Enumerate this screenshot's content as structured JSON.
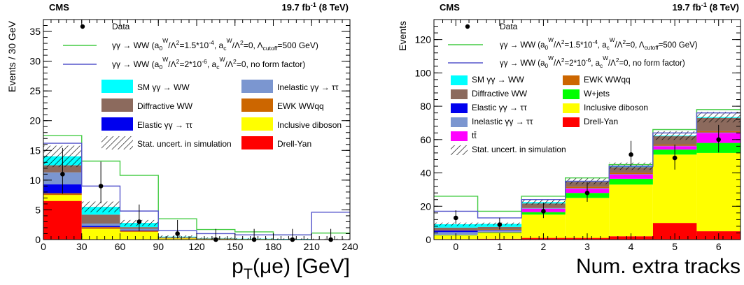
{
  "colors": {
    "sm_aa_ww": "#00ffff",
    "diffractive_ww": "#8c6a5d",
    "elastic_tautau": "#0000ee",
    "inelastic_tautau": "#7b96d0",
    "ewk_wwqq": "#cc6600",
    "inclusive_diboson": "#ffff00",
    "drell_yan": "#ff0000",
    "wjets": "#00ff00",
    "ttbar": "#ff00ff",
    "signal_formfactor": "#44cc44",
    "signal_noformfactor": "#5555cc",
    "data": "#000000"
  },
  "chart_data": [
    {
      "type": "bar",
      "panel": "left",
      "header_left": "CMS",
      "header_right": "19.7 fb-1 (8 TeV)",
      "xlabel": "pT(μe) [GeV]",
      "ylabel": "Events / 30 GeV",
      "xlim": [
        0,
        240
      ],
      "ylim": [
        0,
        37
      ],
      "xticks": [
        0,
        30,
        60,
        90,
        120,
        150,
        180,
        210,
        240
      ],
      "yticks": [
        0,
        5,
        10,
        15,
        20,
        25,
        30,
        35
      ],
      "bin_edges": [
        0,
        30,
        60,
        90,
        120,
        150,
        180,
        210,
        240
      ],
      "stack_order": [
        "drell_yan",
        "inclusive_diboson",
        "ewk_wwqq",
        "elastic_tautau",
        "inelastic_tautau",
        "diffractive_ww",
        "sm_aa_ww"
      ],
      "series": [
        {
          "key": "drell_yan",
          "name": "Drell-Yan",
          "values": [
            6.5,
            0.0,
            0.0,
            0.0,
            0.0,
            0.0,
            0.0,
            0.0
          ]
        },
        {
          "key": "inclusive_diboson",
          "name": "Inclusive diboson",
          "values": [
            1.0,
            1.8,
            1.3,
            0.2,
            0.1,
            0.1,
            0.05,
            0.05
          ]
        },
        {
          "key": "ewk_wwqq",
          "name": "EWK WWqq",
          "values": [
            0.3,
            0.3,
            0.2,
            0.1,
            0.05,
            0.0,
            0.0,
            0.0
          ]
        },
        {
          "key": "elastic_tautau",
          "name": "Elastic γγ → ττ",
          "values": [
            1.5,
            0.2,
            0.1,
            0.0,
            0.0,
            0.0,
            0.0,
            0.0
          ]
        },
        {
          "key": "inelastic_tautau",
          "name": "Inelastic γγ → ττ",
          "values": [
            2.0,
            0.4,
            0.2,
            0.05,
            0.0,
            0.0,
            0.0,
            0.0
          ]
        },
        {
          "key": "diffractive_ww",
          "name": "Diffractive WW",
          "values": [
            1.2,
            1.5,
            0.3,
            0.05,
            0.05,
            0.0,
            0.0,
            0.0
          ]
        },
        {
          "key": "sm_aa_ww",
          "name": "SM γγ → WW",
          "values": [
            1.5,
            1.3,
            0.7,
            0.1,
            0.05,
            0.05,
            0.05,
            0.0
          ]
        }
      ],
      "uncertainty": [
        1.8,
        0.9,
        0.5,
        0.2,
        0.1,
        0.1,
        0.1,
        0.1
      ],
      "signals": [
        {
          "key": "signal_formfactor",
          "name": "γγ → WW (a0W/Λ2=1.5*10-4, acW/Λ2=0, Λcutoff=500 GeV)",
          "values": [
            17.5,
            13.2,
            10.8,
            3.5,
            1.7,
            1.3,
            0.8,
            1.1
          ]
        },
        {
          "key": "signal_noformfactor",
          "name": "γγ → WW (a0W/Λ2=2*10-6, acW/Λ2=0, no form factor)",
          "values": [
            16.2,
            9.0,
            4.8,
            1.5,
            1.0,
            0.8,
            0.8,
            4.6
          ]
        }
      ],
      "data_points": {
        "name": "Data",
        "x": [
          15,
          45,
          75,
          105,
          135,
          165,
          195,
          225
        ],
        "y": [
          11,
          9,
          3,
          1,
          0,
          0,
          0,
          0
        ],
        "err_up": [
          4.4,
          4.1,
          2.9,
          2.3,
          1.8,
          1.8,
          1.8,
          1.8
        ],
        "err_dn": [
          3.3,
          2.9,
          1.6,
          0.8,
          0,
          0,
          0,
          0
        ]
      },
      "legend": [
        {
          "kind": "marker",
          "key": "data",
          "label": "Data"
        },
        {
          "kind": "line",
          "key": "signal_formfactor",
          "label": "γγ → WW (a0W/Λ2=1.5*10-4, acW/Λ2=0, Λcutoff=500 GeV)"
        },
        {
          "kind": "line",
          "key": "signal_noformfactor",
          "label": "γγ → WW (a0W/Λ2=2*10-6, acW/Λ2=0, no form factor)"
        },
        {
          "kind": "box",
          "key": "sm_aa_ww",
          "label": "SM γγ → WW"
        },
        {
          "kind": "box",
          "key": "inelastic_tautau",
          "label": "Inelastic γγ → ττ"
        },
        {
          "kind": "box",
          "key": "diffractive_ww",
          "label": "Diffractive WW"
        },
        {
          "kind": "box",
          "key": "ewk_wwqq",
          "label": "EWK WWqq"
        },
        {
          "kind": "box",
          "key": "elastic_tautau",
          "label": "Elastic γγ → ττ"
        },
        {
          "kind": "box",
          "key": "inclusive_diboson",
          "label": "Inclusive diboson"
        },
        {
          "kind": "hatch",
          "key": "uncert",
          "label": "Stat. uncert. in simulation"
        },
        {
          "kind": "box",
          "key": "drell_yan",
          "label": "Drell-Yan"
        }
      ]
    },
    {
      "type": "bar",
      "panel": "right",
      "header_left": "CMS",
      "header_right": "19.7 fb-1 (8 TeV)",
      "xlabel": "Num. extra tracks",
      "ylabel": "Events",
      "xlim": [
        -0.5,
        6.5
      ],
      "ylim": [
        0,
        132
      ],
      "xticks": [
        0,
        1,
        2,
        3,
        4,
        5,
        6
      ],
      "yticks": [
        0,
        20,
        40,
        60,
        80,
        100,
        120
      ],
      "bin_edges": [
        -0.5,
        0.5,
        1.5,
        2.5,
        3.5,
        4.5,
        5.5,
        6.5
      ],
      "stack_order": [
        "drell_yan",
        "inclusive_diboson",
        "wjets",
        "ttbar",
        "inelastic_tautau",
        "elastic_tautau",
        "ewk_wwqq",
        "diffractive_ww",
        "sm_aa_ww"
      ],
      "series": [
        {
          "key": "drell_yan",
          "name": "Drell-Yan",
          "values": [
            0.3,
            0.5,
            1.0,
            1.0,
            2.0,
            10.0,
            5.0
          ]
        },
        {
          "key": "inclusive_diboson",
          "name": "Inclusive diboson",
          "values": [
            2.2,
            3.5,
            14.0,
            24.0,
            31.0,
            41.0,
            47.0
          ]
        },
        {
          "key": "wjets",
          "name": "W+jets",
          "values": [
            0.3,
            0.4,
            1.5,
            3.0,
            3.5,
            3.0,
            6.0
          ]
        },
        {
          "key": "ttbar",
          "name": "tt̄",
          "values": [
            0.2,
            0.3,
            2.0,
            2.5,
            2.5,
            2.0,
            6.0
          ]
        },
        {
          "key": "inelastic_tautau",
          "name": "Inelastic γγ → ττ",
          "values": [
            1.5,
            0.8,
            0.5,
            0.3,
            0.2,
            0.2,
            0.2
          ]
        },
        {
          "key": "elastic_tautau",
          "name": "Elastic γγ → ττ",
          "values": [
            1.0,
            0.3,
            0.2,
            0.1,
            0.1,
            0.1,
            0.1
          ]
        },
        {
          "key": "ewk_wwqq",
          "name": "EWK WWqq",
          "values": [
            0.2,
            0.3,
            0.5,
            0.8,
            0.7,
            0.7,
            0.7
          ]
        },
        {
          "key": "diffractive_ww",
          "name": "Diffractive WW",
          "values": [
            1.5,
            1.5,
            2.0,
            3.0,
            3.5,
            5.0,
            8.0
          ]
        },
        {
          "key": "sm_aa_ww",
          "name": "SM γγ → WW",
          "values": [
            2.0,
            1.8,
            0.8,
            0.5,
            0.5,
            0.4,
            0.5
          ]
        }
      ],
      "uncertainty": [
        1.0,
        0.8,
        1.5,
        2.0,
        2.2,
        2.6,
        3.2
      ],
      "signals": [
        {
          "key": "signal_formfactor",
          "name": "γγ → WW (a0W/Λ2=1.5*10-4, acW/Λ2=0, Λcutoff=500 GeV)",
          "values": [
            26.0,
            17.0,
            26.0,
            37.0,
            45.0,
            66.0,
            78.0
          ]
        },
        {
          "key": "signal_noformfactor",
          "name": "γγ → WW (a0W/Λ2=2*10-6, acW/Λ2=0, no form factor)",
          "values": [
            17.0,
            13.0,
            24.0,
            35.0,
            44.0,
            64.0,
            76.0
          ]
        }
      ],
      "data_points": {
        "name": "Data",
        "x": [
          0,
          1,
          2,
          3,
          4,
          5,
          6
        ],
        "y": [
          13,
          9,
          17,
          28,
          51,
          49,
          60
        ],
        "err_up": [
          4.6,
          4.1,
          5.2,
          6.4,
          8.2,
          8.0,
          8.8
        ],
        "err_dn": [
          3.6,
          2.9,
          4.1,
          5.3,
          7.1,
          7.0,
          7.7
        ]
      },
      "legend": [
        {
          "kind": "marker",
          "key": "data",
          "label": "Data"
        },
        {
          "kind": "line",
          "key": "signal_formfactor",
          "label": "γγ → WW (a0W/Λ2=1.5*10-4, acW/Λ2=0, Λcutoff=500 GeV)"
        },
        {
          "kind": "line",
          "key": "signal_noformfactor",
          "label": "γγ → WW (a0W/Λ2=2*10-6, acW/Λ2=0, no form factor)"
        },
        {
          "kind": "box",
          "key": "sm_aa_ww",
          "label": "SM γγ → WW"
        },
        {
          "kind": "box",
          "key": "ewk_wwqq",
          "label": "EWK WWqq"
        },
        {
          "kind": "box",
          "key": "diffractive_ww",
          "label": "Diffractive WW"
        },
        {
          "kind": "box",
          "key": "wjets",
          "label": "W+jets"
        },
        {
          "kind": "box",
          "key": "elastic_tautau",
          "label": "Elastic γγ → ττ"
        },
        {
          "kind": "box",
          "key": "inclusive_diboson",
          "label": "Inclusive diboson"
        },
        {
          "kind": "box",
          "key": "inelastic_tautau",
          "label": "Inelastic γγ → ττ"
        },
        {
          "kind": "box",
          "key": "drell_yan",
          "label": "Drell-Yan"
        },
        {
          "kind": "box",
          "key": "ttbar",
          "label": "tt̄"
        },
        {
          "kind": "hatch",
          "key": "uncert",
          "label": "Stat. uncert. in simulation"
        }
      ]
    }
  ]
}
